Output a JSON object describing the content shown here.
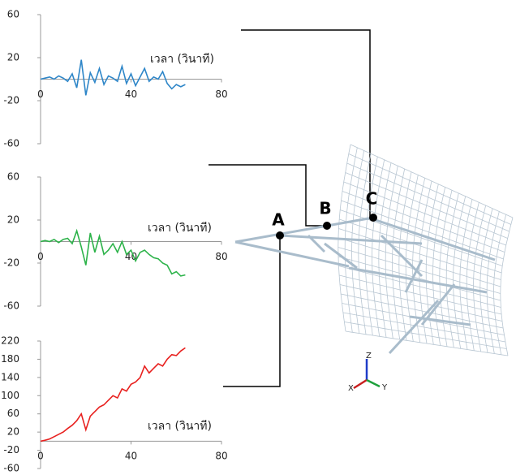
{
  "chart_data": [
    {
      "type": "line",
      "x_label": "เวลา (วินาที)",
      "xlim": [
        0,
        80
      ],
      "xticks": [
        0,
        40,
        80
      ],
      "ylim": [
        -60,
        60
      ],
      "yticks": [
        60,
        20,
        -20,
        -60
      ],
      "x": [
        0,
        2,
        4,
        6,
        8,
        10,
        12,
        14,
        16,
        18,
        20,
        22,
        24,
        26,
        28,
        30,
        32,
        34,
        36,
        38,
        40,
        42,
        44,
        46,
        48,
        50,
        52,
        54,
        56,
        58,
        60,
        62,
        64
      ],
      "series": [
        {
          "color": "#2e86c8",
          "values": [
            0,
            1,
            2,
            0,
            3,
            1,
            -2,
            5,
            -8,
            18,
            -15,
            6,
            -3,
            10,
            -5,
            3,
            1,
            -2,
            12,
            -4,
            5,
            -6,
            2,
            10,
            -2,
            2,
            0,
            7,
            -4,
            -9,
            -5,
            -7,
            -5
          ]
        }
      ]
    },
    {
      "type": "line",
      "x_label": "เวลา (วินาที)",
      "xlim": [
        0,
        80
      ],
      "xticks": [
        0,
        40,
        80
      ],
      "ylim": [
        -60,
        60
      ],
      "yticks": [
        60,
        20,
        -20,
        -60
      ],
      "x": [
        0,
        2,
        4,
        6,
        8,
        10,
        12,
        14,
        16,
        18,
        20,
        22,
        24,
        26,
        28,
        30,
        32,
        34,
        36,
        38,
        40,
        42,
        44,
        46,
        48,
        50,
        52,
        54,
        56,
        58,
        60,
        62,
        64
      ],
      "series": [
        {
          "color": "#2db34a",
          "values": [
            0,
            1,
            0,
            2,
            -1,
            2,
            3,
            -2,
            10,
            -5,
            -22,
            8,
            -10,
            5,
            -12,
            -8,
            -2,
            -10,
            0,
            -12,
            -8,
            -18,
            -10,
            -8,
            -12,
            -15,
            -16,
            -20,
            -22,
            -30,
            -28,
            -32,
            -31
          ]
        }
      ]
    },
    {
      "type": "line",
      "x_label": "เวลา (วินาที)",
      "xlim": [
        0,
        80
      ],
      "xticks": [
        0,
        40,
        80
      ],
      "ylim": [
        -60,
        220
      ],
      "yticks": [
        220,
        180,
        140,
        100,
        60,
        20,
        -20,
        -60
      ],
      "x": [
        0,
        2,
        4,
        6,
        8,
        10,
        12,
        14,
        16,
        18,
        20,
        22,
        24,
        26,
        28,
        30,
        32,
        34,
        36,
        38,
        40,
        42,
        44,
        46,
        48,
        50,
        52,
        54,
        56,
        58,
        60,
        62,
        64
      ],
      "series": [
        {
          "color": "#e8211f",
          "values": [
            0,
            2,
            5,
            10,
            15,
            20,
            28,
            35,
            45,
            60,
            25,
            55,
            65,
            75,
            80,
            90,
            100,
            95,
            115,
            110,
            125,
            130,
            140,
            165,
            150,
            160,
            170,
            165,
            180,
            190,
            188,
            198,
            205
          ]
        }
      ]
    }
  ],
  "diagram": {
    "points": [
      "A",
      "B",
      "C"
    ],
    "axes": [
      "X",
      "Y",
      "Z"
    ]
  }
}
